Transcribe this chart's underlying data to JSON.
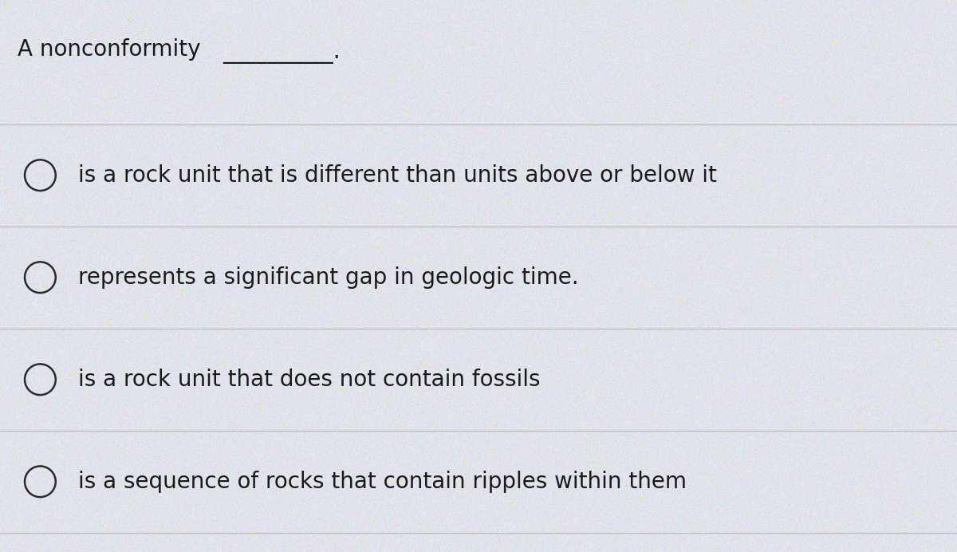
{
  "title_plain": "A nonconformity ",
  "title_dashes": "__________.",
  "options": [
    "is a rock unit that is different than units above or below it",
    "represents a significant gap in geologic time.",
    "is a rock unit that does not contain fossils",
    "is a sequence of rocks that contain ripples within them"
  ],
  "background_color": "#e8e8e8",
  "text_color": "#1a1a1a",
  "line_color": "#bbbbbb",
  "circle_color": "#2a2a2a",
  "title_fontsize": 20,
  "option_fontsize": 20,
  "fig_width": 12.0,
  "fig_height": 6.92
}
